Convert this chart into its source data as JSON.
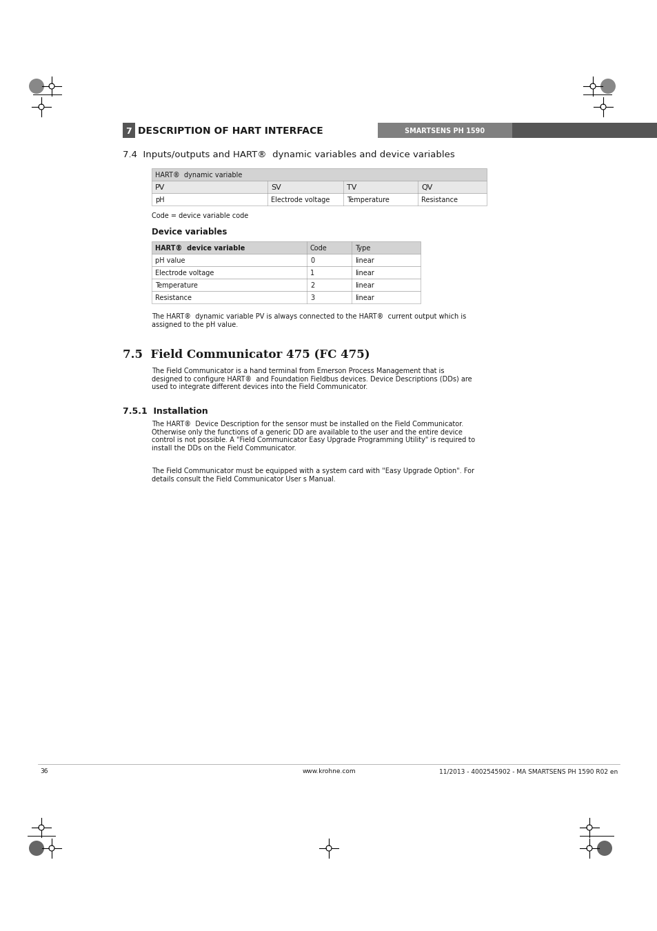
{
  "page_bg": "#ffffff",
  "page_number": "36",
  "footer_center": "www.krohne.com",
  "footer_right": "11/2013 - 4002545902 - MA SMARTSENS PH 1590 R02 en",
  "section_title_number": "7",
  "section_title_text": "DESCRIPTION OF HART INTERFACE",
  "section_title_sub": "SMARTSENS PH 1590",
  "subsection_74": "7.4  Inputs/outputs and HART®  dynamic variables and device variables",
  "table1_header": "HART®  dynamic variable",
  "table1_col_headers": [
    "PV",
    "SV",
    "TV",
    "QV"
  ],
  "table1_row": [
    "pH",
    "Electrode voltage",
    "Temperature",
    "Resistance"
  ],
  "code_note": "Code = device variable code",
  "device_vars_title": "Device variables",
  "table2_col_headers": [
    "HART®  device variable",
    "Code",
    "Type"
  ],
  "table2_rows": [
    [
      "pH value",
      "0",
      "linear"
    ],
    [
      "Electrode voltage",
      "1",
      "linear"
    ],
    [
      "Temperature",
      "2",
      "linear"
    ],
    [
      "Resistance",
      "3",
      "linear"
    ]
  ],
  "hart_note": "The HART®  dynamic variable PV is always connected to the HART®  current output which is\nassigned to the pH value.",
  "subsection_75": "7.5  Field Communicator 475 (FC 475)",
  "subsection_75_text": "The Field Communicator is a hand terminal from Emerson Process Management that is\ndesigned to configure HART®  and Foundation Fieldbus devices. Device Descriptions (DDs) are\nused to integrate different devices into the Field Communicator.",
  "subsection_751": "7.5.1  Installation",
  "subsection_751_text1": "The HART®  Device Description for the sensor must be installed on the Field Communicator.\nOtherwise only the functions of a generic DD are available to the user and the entire device\ncontrol is not possible. A \"Field Communicator Easy Upgrade Programming Utility\" is required to\ninstall the DDs on the Field Communicator.",
  "subsection_751_text2": "The Field Communicator must be equipped with a system card with \"Easy Upgrade Option\". For\ndetails consult the Field Communicator User s Manual."
}
